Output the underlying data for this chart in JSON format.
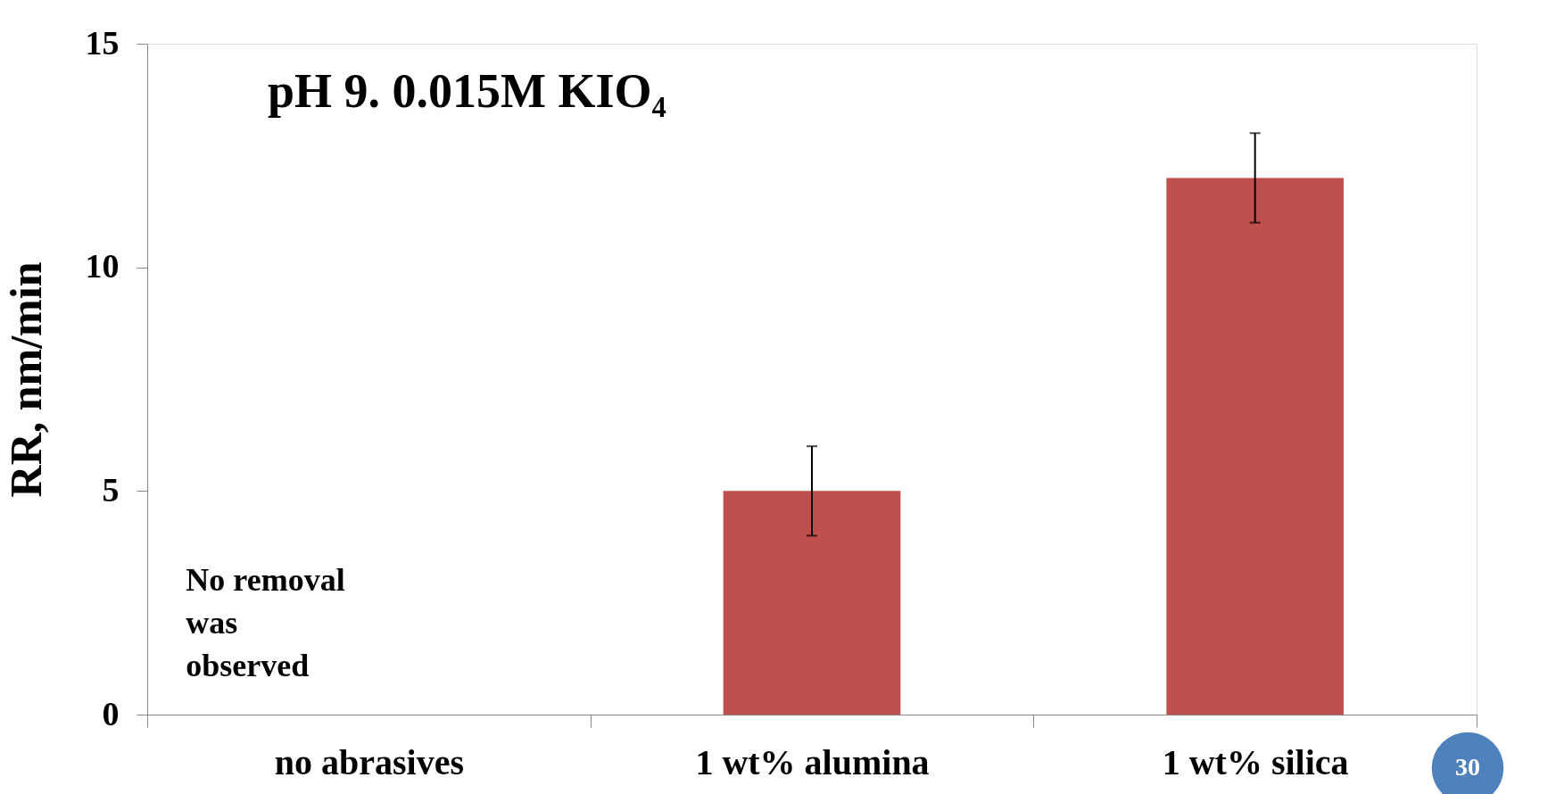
{
  "chart_data": {
    "type": "bar",
    "title": "pH 9. 0.015M KIO₄",
    "ylabel": "RR, nm/min",
    "categories": [
      "no abrasives",
      "1 wt% alumina",
      "1 wt% silica"
    ],
    "values": [
      null,
      5,
      12
    ],
    "errors": [
      null,
      1,
      1
    ],
    "color": "#c0504d",
    "ylim": [
      0,
      15
    ],
    "yticks": [
      0,
      5,
      10,
      15
    ],
    "grid": false,
    "annotations": [
      "No removal\nwas\nobserved",
      "30"
    ]
  }
}
